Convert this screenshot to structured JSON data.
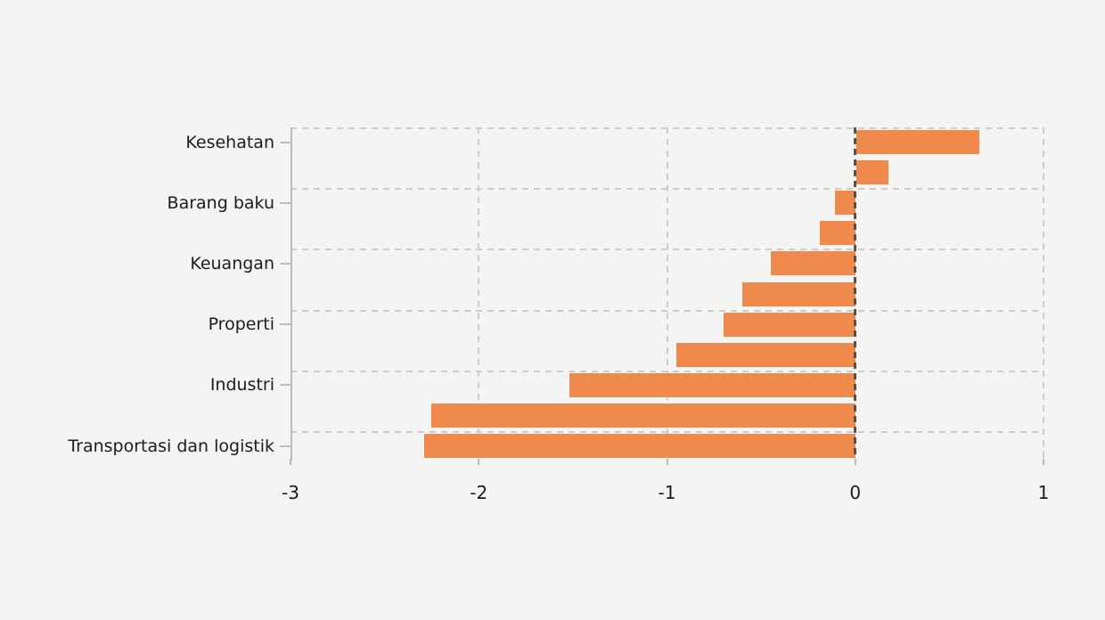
{
  "chart_data": {
    "type": "bar",
    "orientation": "horizontal",
    "title": "",
    "xlabel": "",
    "ylabel": "",
    "xlim": [
      -3,
      1
    ],
    "x_ticks": [
      -3,
      -2,
      -1,
      0,
      1
    ],
    "x_tick_labels": [
      "-3",
      "-2",
      "-1",
      "0",
      "1"
    ],
    "grid": "dashed",
    "legend": "none",
    "bars": [
      {
        "label": "Kesehatan",
        "value": 0.65
      },
      {
        "label": "",
        "value": 0.17
      },
      {
        "label": "Barang baku",
        "value": -0.11
      },
      {
        "label": "",
        "value": -0.19
      },
      {
        "label": "Keuangan",
        "value": -0.45
      },
      {
        "label": "",
        "value": -0.6
      },
      {
        "label": "Properti",
        "value": -0.7
      },
      {
        "label": "",
        "value": -0.95
      },
      {
        "label": "Industri",
        "value": -1.52
      },
      {
        "label": "",
        "value": -2.25
      },
      {
        "label": "Transportasi dan logistik",
        "value": -2.29
      }
    ],
    "colors": {
      "bar": "#f08a4c",
      "zero_line": "#55524c",
      "grid": "#cdcdcd",
      "axis": "#bcbcbc",
      "text": "#1c1c1c",
      "background": "#f4f4f2"
    }
  }
}
